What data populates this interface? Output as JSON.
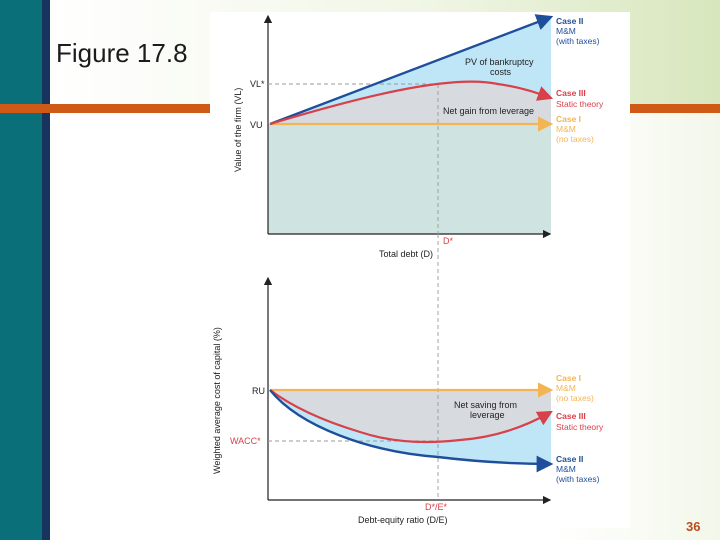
{
  "slide": {
    "title": "Figure 17.8",
    "page_number": "36"
  },
  "colors": {
    "teal_bar": "#0b6f7a",
    "navy_bar": "#16345e",
    "accent_orange": "#cf5a16",
    "case1_line": "#f3b554",
    "case2_line": "#1f4e9a",
    "case3_line": "#d8404a",
    "light_blue_fill": "#bfe6f7",
    "gray_fill": "#d7dbe0",
    "teal_fill": "#cfe3e1"
  },
  "top_chart": {
    "y_axis_label": "Value of the firm (VL)",
    "x_axis_label": "Total debt (D)",
    "tick_vl_star": "VL*",
    "tick_vu": "VU",
    "tick_d_star": "D*",
    "annotation_pv": "PV of bankruptcy",
    "annotation_pv2": "costs",
    "annotation_net_gain": "Net gain from leverage",
    "case2": {
      "title": "Case II",
      "line1": "M&M",
      "line2": "(with taxes)"
    },
    "case3": {
      "title": "Case III",
      "line1": "Static theory"
    },
    "case1": {
      "title": "Case I",
      "line1": "M&M",
      "line2": "(no taxes)"
    }
  },
  "bottom_chart": {
    "y_axis_label": "Weighted average cost of capital (%)",
    "x_axis_label": "Debt-equity ratio (D/E)",
    "tick_ru": "RU",
    "tick_wacc_star": "WACC*",
    "tick_de_star": "D*/E*",
    "annotation_net_saving": "Net saving from",
    "annotation_net_saving2": "leverage",
    "case1": {
      "title": "Case I",
      "line1": "M&M",
      "line2": "(no taxes)"
    },
    "case3": {
      "title": "Case III",
      "line1": "Static theory"
    },
    "case2": {
      "title": "Case II",
      "line1": "M&M",
      "line2": "(with taxes)"
    }
  }
}
